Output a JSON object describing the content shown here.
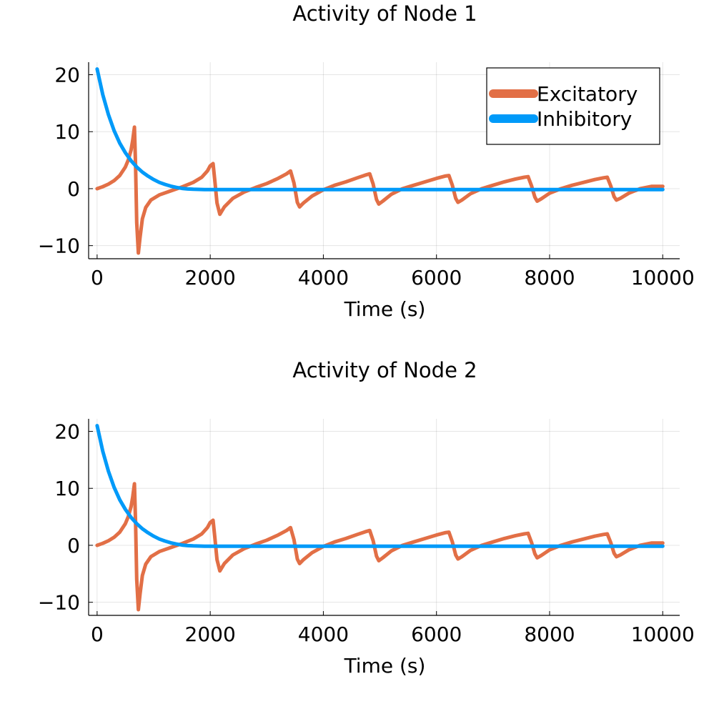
{
  "chart_data": [
    {
      "type": "line",
      "title": "Activity of Node 1",
      "xlabel": "Time (s)",
      "ylabel": "",
      "xlim": [
        -150,
        10300
      ],
      "ylim": [
        -12.3,
        22.2
      ],
      "xticks": [
        0,
        2000,
        4000,
        6000,
        8000,
        10000
      ],
      "yticks": [
        -10,
        0,
        10,
        20
      ],
      "xtick_labels": [
        "0",
        "2000",
        "4000",
        "6000",
        "8000",
        "10000"
      ],
      "ytick_labels": [
        "−10",
        "0",
        "10",
        "20"
      ],
      "grid": true,
      "legend": "top-right",
      "series": [
        {
          "name": "Excitatory",
          "color": "#e26f46",
          "x": [
            0,
            100,
            200,
            300,
            400,
            500,
            550,
            600,
            630,
            660,
            680,
            700,
            730,
            760,
            800,
            860,
            950,
            1100,
            1300,
            1500,
            1700,
            1850,
            1950,
            2000,
            2050,
            2080,
            2120,
            2170,
            2250,
            2400,
            2600,
            2800,
            3000,
            3200,
            3350,
            3420,
            3480,
            3540,
            3580,
            3650,
            3800,
            4000,
            4200,
            4400,
            4600,
            4750,
            4820,
            4880,
            4940,
            4980,
            5050,
            5200,
            5400,
            5600,
            5800,
            6000,
            6150,
            6220,
            6280,
            6340,
            6380,
            6450,
            6600,
            6800,
            7000,
            7200,
            7400,
            7550,
            7620,
            7680,
            7740,
            7780,
            7850,
            8000,
            8200,
            8400,
            8600,
            8800,
            8950,
            9020,
            9080,
            9140,
            9180,
            9250,
            9400,
            9600,
            9800,
            10000
          ],
          "values": [
            0,
            0.35,
            0.8,
            1.4,
            2.3,
            3.8,
            5.0,
            6.8,
            8.5,
            10.8,
            4.0,
            -6.0,
            -11.3,
            -8.5,
            -5.3,
            -3.3,
            -2.0,
            -1.1,
            -0.4,
            0.3,
            1.1,
            2.0,
            3.1,
            4.0,
            4.4,
            1.5,
            -2.5,
            -4.5,
            -3.2,
            -1.7,
            -0.6,
            0.2,
            0.9,
            1.8,
            2.6,
            3.1,
            1.0,
            -2.4,
            -3.2,
            -2.5,
            -1.3,
            -0.2,
            0.6,
            1.2,
            1.9,
            2.4,
            2.6,
            0.8,
            -1.9,
            -2.7,
            -2.2,
            -1.0,
            0,
            0.6,
            1.2,
            1.8,
            2.2,
            2.3,
            0.6,
            -1.7,
            -2.4,
            -2.0,
            -0.9,
            0,
            0.6,
            1.2,
            1.7,
            2.0,
            2.1,
            0.5,
            -1.5,
            -2.2,
            -1.8,
            -0.8,
            0,
            0.6,
            1.1,
            1.6,
            1.9,
            2.0,
            0.5,
            -1.4,
            -2.0,
            -1.7,
            -0.8,
            0,
            0.4,
            0.4
          ]
        },
        {
          "name": "Inhibitory",
          "color": "#009af9",
          "x": [
            0,
            100,
            200,
            300,
            400,
            500,
            600,
            700,
            800,
            900,
            1000,
            1100,
            1200,
            1300,
            1400,
            1500,
            1600,
            1700,
            1800,
            1900,
            2000,
            2200,
            2500,
            3000,
            4000,
            5000,
            6000,
            7000,
            8000,
            9000,
            10000
          ],
          "values": [
            21.0,
            16.5,
            13.0,
            10.2,
            8.0,
            6.3,
            4.9,
            3.8,
            2.9,
            2.2,
            1.6,
            1.1,
            0.75,
            0.45,
            0.22,
            0.05,
            -0.05,
            -0.1,
            -0.13,
            -0.15,
            -0.15,
            -0.15,
            -0.15,
            -0.15,
            -0.15,
            -0.15,
            -0.15,
            -0.15,
            -0.15,
            -0.15,
            -0.15
          ]
        }
      ]
    },
    {
      "type": "line",
      "title": "Activity of Node 2",
      "xlabel": "Time (s)",
      "ylabel": "",
      "xlim": [
        -150,
        10300
      ],
      "ylim": [
        -12.3,
        22.2
      ],
      "xticks": [
        0,
        2000,
        4000,
        6000,
        8000,
        10000
      ],
      "yticks": [
        -10,
        0,
        10,
        20
      ],
      "xtick_labels": [
        "0",
        "2000",
        "4000",
        "6000",
        "8000",
        "10000"
      ],
      "ytick_labels": [
        "−10",
        "0",
        "10",
        "20"
      ],
      "grid": true,
      "legend": "none",
      "series": [
        {
          "color": "#e26f46",
          "x": [
            0,
            100,
            200,
            300,
            400,
            500,
            550,
            600,
            630,
            660,
            680,
            700,
            730,
            760,
            800,
            860,
            950,
            1100,
            1300,
            1500,
            1700,
            1850,
            1950,
            2000,
            2050,
            2080,
            2120,
            2170,
            2250,
            2400,
            2600,
            2800,
            3000,
            3200,
            3350,
            3420,
            3480,
            3540,
            3580,
            3650,
            3800,
            4000,
            4200,
            4400,
            4600,
            4750,
            4820,
            4880,
            4940,
            4980,
            5050,
            5200,
            5400,
            5600,
            5800,
            6000,
            6150,
            6220,
            6280,
            6340,
            6380,
            6450,
            6600,
            6800,
            7000,
            7200,
            7400,
            7550,
            7620,
            7680,
            7740,
            7780,
            7850,
            8000,
            8200,
            8400,
            8600,
            8800,
            8950,
            9020,
            9080,
            9140,
            9180,
            9250,
            9400,
            9600,
            9800,
            10000
          ],
          "values": [
            0,
            0.35,
            0.8,
            1.4,
            2.3,
            3.8,
            5.0,
            6.8,
            8.5,
            10.8,
            4.0,
            -6.0,
            -11.3,
            -8.5,
            -5.3,
            -3.3,
            -2.0,
            -1.1,
            -0.4,
            0.3,
            1.1,
            2.0,
            3.1,
            4.0,
            4.4,
            1.5,
            -2.5,
            -4.5,
            -3.2,
            -1.7,
            -0.6,
            0.2,
            0.9,
            1.8,
            2.6,
            3.1,
            1.0,
            -2.4,
            -3.2,
            -2.5,
            -1.3,
            -0.2,
            0.6,
            1.2,
            1.9,
            2.4,
            2.6,
            0.8,
            -1.9,
            -2.7,
            -2.2,
            -1.0,
            0,
            0.6,
            1.2,
            1.8,
            2.2,
            2.3,
            0.6,
            -1.7,
            -2.4,
            -2.0,
            -0.9,
            0,
            0.6,
            1.2,
            1.7,
            2.0,
            2.1,
            0.5,
            -1.5,
            -2.2,
            -1.8,
            -0.8,
            0,
            0.6,
            1.1,
            1.6,
            1.9,
            2.0,
            0.5,
            -1.4,
            -2.0,
            -1.7,
            -0.8,
            0,
            0.4,
            0.4
          ]
        },
        {
          "color": "#009af9",
          "x": [
            0,
            100,
            200,
            300,
            400,
            500,
            600,
            700,
            800,
            900,
            1000,
            1100,
            1200,
            1300,
            1400,
            1500,
            1600,
            1700,
            1800,
            1900,
            2000,
            2200,
            2500,
            3000,
            4000,
            5000,
            6000,
            7000,
            8000,
            9000,
            10000
          ],
          "values": [
            21.0,
            16.5,
            13.0,
            10.2,
            8.0,
            6.3,
            4.9,
            3.8,
            2.9,
            2.2,
            1.6,
            1.1,
            0.75,
            0.45,
            0.22,
            0.05,
            -0.05,
            -0.1,
            -0.13,
            -0.15,
            -0.15,
            -0.15,
            -0.15,
            -0.15,
            -0.15,
            -0.15,
            -0.15,
            -0.15,
            -0.15,
            -0.15,
            -0.15
          ]
        }
      ]
    }
  ]
}
